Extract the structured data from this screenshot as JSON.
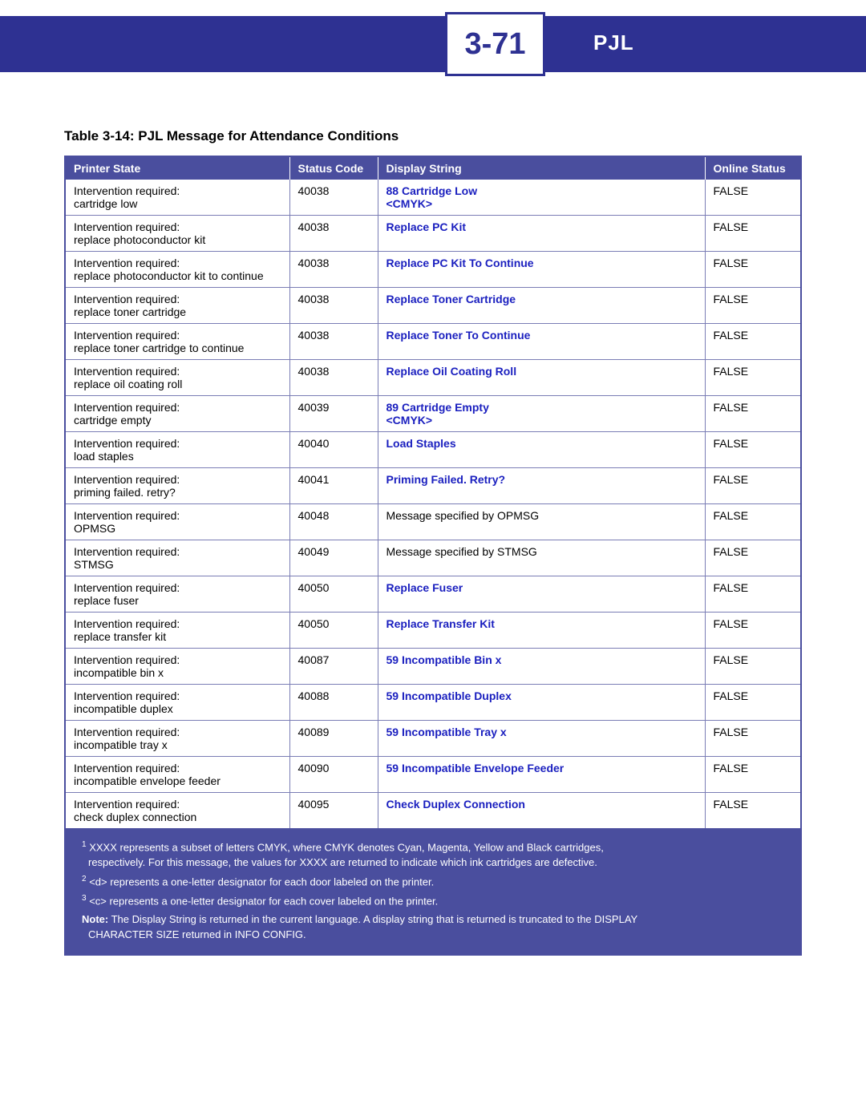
{
  "header": {
    "page_number": "3-71",
    "section_label": "PJL"
  },
  "table": {
    "title": "Table 3-14:  PJL Message for Attendance Conditions",
    "columns": [
      "Printer State",
      "Status Code",
      "Display String",
      "Online Status"
    ],
    "rows": [
      {
        "state_l1": "Intervention required:",
        "state_l2": "cartridge low",
        "code": "40038",
        "display_l1": "88 Cartridge Low",
        "display_l2": "<CMYK>",
        "display_bold": true,
        "online": "FALSE"
      },
      {
        "state_l1": "Intervention required:",
        "state_l2": "replace photoconductor kit",
        "code": "40038",
        "display_l1": "Replace PC Kit",
        "display_l2": "",
        "display_bold": true,
        "online": "FALSE"
      },
      {
        "state_l1": "Intervention required:",
        "state_l2": "replace photoconductor kit to continue",
        "code": "40038",
        "display_l1": "Replace PC Kit To Continue",
        "display_l2": "",
        "display_bold": true,
        "online": "FALSE"
      },
      {
        "state_l1": "Intervention required:",
        "state_l2": "replace toner cartridge",
        "code": "40038",
        "display_l1": "Replace Toner Cartridge",
        "display_l2": "",
        "display_bold": true,
        "online": "FALSE"
      },
      {
        "state_l1": "Intervention required:",
        "state_l2": "replace toner cartridge to continue",
        "code": "40038",
        "display_l1": "Replace Toner To Continue",
        "display_l2": "",
        "display_bold": true,
        "online": "FALSE"
      },
      {
        "state_l1": "Intervention required:",
        "state_l2": "replace oil coating roll",
        "code": "40038",
        "display_l1": "Replace Oil Coating Roll",
        "display_l2": "",
        "display_bold": true,
        "online": "FALSE"
      },
      {
        "state_l1": "Intervention required:",
        "state_l2": "cartridge empty",
        "code": "40039",
        "display_l1": "89 Cartridge Empty",
        "display_l2": "<CMYK>",
        "display_bold": true,
        "online": "FALSE"
      },
      {
        "state_l1": "Intervention required:",
        "state_l2": "load staples",
        "code": "40040",
        "display_l1": "Load Staples",
        "display_l2": "",
        "display_bold": true,
        "online": "FALSE"
      },
      {
        "state_l1": "Intervention required:",
        "state_l2": "priming failed. retry?",
        "code": "40041",
        "display_l1": "Priming Failed. Retry?",
        "display_l2": "",
        "display_bold": true,
        "online": "FALSE"
      },
      {
        "state_l1": "Intervention required:",
        "state_l2": "OPMSG",
        "code": "40048",
        "display_l1": "Message specified by OPMSG",
        "display_l2": "",
        "display_bold": false,
        "online": "FALSE"
      },
      {
        "state_l1": "Intervention required:",
        "state_l2": "STMSG",
        "code": "40049",
        "display_l1": "Message specified by STMSG",
        "display_l2": "",
        "display_bold": false,
        "online": "FALSE"
      },
      {
        "state_l1": "Intervention required:",
        "state_l2": "replace fuser",
        "code": "40050",
        "display_l1": "Replace Fuser",
        "display_l2": "",
        "display_bold": true,
        "online": "FALSE"
      },
      {
        "state_l1": "Intervention required:",
        "state_l2": "replace transfer kit",
        "code": "40050",
        "display_l1": "Replace Transfer Kit",
        "display_l2": "",
        "display_bold": true,
        "online": "FALSE"
      },
      {
        "state_l1": "Intervention required:",
        "state_l2": "incompatible bin x",
        "code": "40087",
        "display_l1": "59 Incompatible Bin x",
        "display_l2": "",
        "display_bold": true,
        "online": "FALSE"
      },
      {
        "state_l1": "Intervention required:",
        "state_l2": "incompatible duplex",
        "code": "40088",
        "display_l1": "59 Incompatible Duplex",
        "display_l2": "",
        "display_bold": true,
        "online": "FALSE"
      },
      {
        "state_l1": "Intervention required:",
        "state_l2": "incompatible tray x",
        "code": "40089",
        "display_l1": "59 Incompatible Tray x",
        "display_l2": "",
        "display_bold": true,
        "online": "FALSE"
      },
      {
        "state_l1": "Intervention required:",
        "state_l2": "incompatible envelope feeder",
        "code": "40090",
        "display_l1": "59 Incompatible Envelope Feeder",
        "display_l2": "",
        "display_bold": true,
        "online": "FALSE"
      },
      {
        "state_l1": "Intervention required:",
        "state_l2": "check duplex connection",
        "code": "40095",
        "display_l1": "Check Duplex Connection",
        "display_l2": "",
        "display_bold": true,
        "online": "FALSE"
      }
    ]
  },
  "footnotes": {
    "fn1a": "XXXX represents a subset of letters CMYK, where CMYK denotes Cyan, Magenta, Yellow and Black cartridges,",
    "fn1b": "respectively. For this message, the values for XXXX are returned to indicate which ink cartridges are defective.",
    "fn2": "<d> represents a one-letter designator for each door labeled on the printer.",
    "fn3": "<c> represents a one-letter designator for each cover labeled on the printer.",
    "note_label": "Note:",
    "note_a": " The Display String is returned in the current language. A display string that is returned is truncated to the DISPLAY",
    "note_b": "CHARACTER SIZE returned in INFO CONFIG."
  },
  "sup": {
    "s1": "1",
    "s2": "2",
    "s3": "3"
  }
}
